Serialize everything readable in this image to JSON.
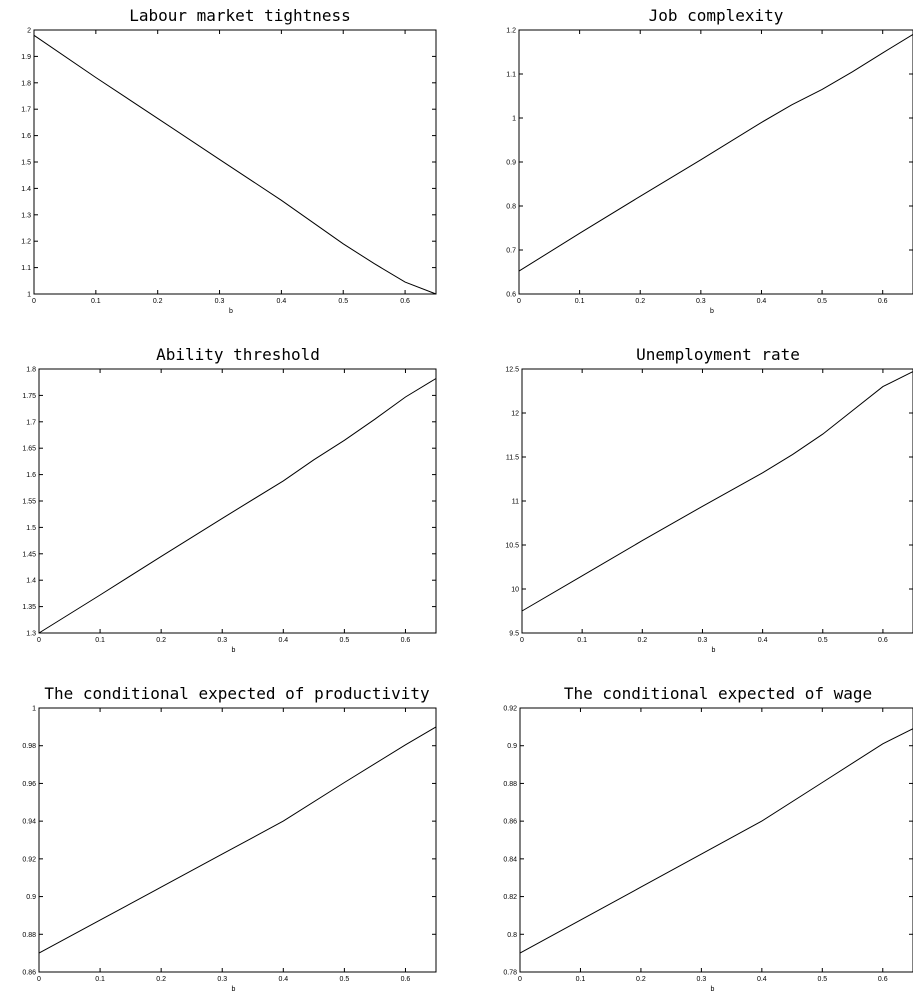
{
  "chart_data": [
    {
      "type": "line",
      "title": "Labour market tightness",
      "xlabel": "b",
      "xlim": [
        0,
        0.65
      ],
      "ylim": [
        1,
        2
      ],
      "xticks": [
        "0",
        "0.1",
        "0.2",
        "0.3",
        "0.4",
        "0.5",
        "0.6"
      ],
      "yticks": [
        "1",
        "1.1",
        "1.2",
        "1.3",
        "1.4",
        "1.5",
        "1.6",
        "1.7",
        "1.8",
        "1.9",
        "2"
      ],
      "x": [
        0,
        0.1,
        0.2,
        0.3,
        0.4,
        0.5,
        0.55,
        0.6,
        0.65
      ],
      "y": [
        1.98,
        1.82,
        1.665,
        1.51,
        1.355,
        1.19,
        1.115,
        1.045,
        1.0
      ]
    },
    {
      "type": "line",
      "title": "Job complexity",
      "xlabel": "b",
      "xlim": [
        0,
        0.65
      ],
      "ylim": [
        0.6,
        1.2
      ],
      "xticks": [
        "0",
        "0.1",
        "0.2",
        "0.3",
        "0.4",
        "0.5",
        "0.6"
      ],
      "yticks": [
        "0.6",
        "0.7",
        "0.8",
        "0.9",
        "1",
        "1.1",
        "1.2"
      ],
      "x": [
        0,
        0.1,
        0.2,
        0.3,
        0.4,
        0.45,
        0.5,
        0.55,
        0.6,
        0.65
      ],
      "y": [
        0.652,
        0.738,
        0.822,
        0.905,
        0.99,
        1.03,
        1.065,
        1.105,
        1.148,
        1.19
      ]
    },
    {
      "type": "line",
      "title": "Ability threshold",
      "xlabel": "b",
      "xlim": [
        0,
        0.65
      ],
      "ylim": [
        1.3,
        1.8
      ],
      "xticks": [
        "0",
        "0.1",
        "0.2",
        "0.3",
        "0.4",
        "0.5",
        "0.6"
      ],
      "yticks": [
        "1.3",
        "1.35",
        "1.4",
        "1.45",
        "1.5",
        "1.55",
        "1.6",
        "1.65",
        "1.7",
        "1.75",
        "1.8"
      ],
      "x": [
        0,
        0.1,
        0.2,
        0.3,
        0.4,
        0.45,
        0.5,
        0.55,
        0.6,
        0.65
      ],
      "y": [
        1.3,
        1.372,
        1.445,
        1.517,
        1.588,
        1.628,
        1.665,
        1.705,
        1.747,
        1.782
      ]
    },
    {
      "type": "line",
      "title": "Unemployment rate",
      "xlabel": "b",
      "xlim": [
        0,
        0.65
      ],
      "ylim": [
        9.5,
        12.5
      ],
      "xticks": [
        "0",
        "0.1",
        "0.2",
        "0.3",
        "0.4",
        "0.5",
        "0.6"
      ],
      "yticks": [
        "9.5",
        "10",
        "10.5",
        "11",
        "11.5",
        "12",
        "12.5"
      ],
      "x": [
        0,
        0.1,
        0.2,
        0.3,
        0.4,
        0.45,
        0.5,
        0.55,
        0.6,
        0.65
      ],
      "y": [
        9.75,
        10.15,
        10.55,
        10.94,
        11.32,
        11.53,
        11.76,
        12.03,
        12.3,
        12.47
      ]
    },
    {
      "type": "line",
      "title": "The conditional expected of productivity",
      "xlabel": "b",
      "xlim": [
        0,
        0.65
      ],
      "ylim": [
        0.86,
        1.0
      ],
      "xticks": [
        "0",
        "0.1",
        "0.2",
        "0.3",
        "0.4",
        "0.5",
        "0.6"
      ],
      "yticks": [
        "0.86",
        "0.88",
        "0.9",
        "0.92",
        "0.94",
        "0.96",
        "0.98",
        "1"
      ],
      "x": [
        0,
        0.1,
        0.2,
        0.3,
        0.4,
        0.5,
        0.6,
        0.65
      ],
      "y": [
        0.87,
        0.8875,
        0.905,
        0.9225,
        0.94,
        0.9605,
        0.9805,
        0.99
      ]
    },
    {
      "type": "line",
      "title": "The conditional expected of wage",
      "xlabel": "b",
      "xlim": [
        0,
        0.65
      ],
      "ylim": [
        0.78,
        0.92
      ],
      "xticks": [
        "0",
        "0.1",
        "0.2",
        "0.3",
        "0.4",
        "0.5",
        "0.6"
      ],
      "yticks": [
        "0.78",
        "0.8",
        "0.82",
        "0.84",
        "0.86",
        "0.88",
        "0.9",
        "0.92"
      ],
      "x": [
        0,
        0.1,
        0.2,
        0.3,
        0.4,
        0.5,
        0.6,
        0.65
      ],
      "y": [
        0.79,
        0.8075,
        0.825,
        0.8425,
        0.86,
        0.8805,
        0.901,
        0.909
      ]
    }
  ]
}
